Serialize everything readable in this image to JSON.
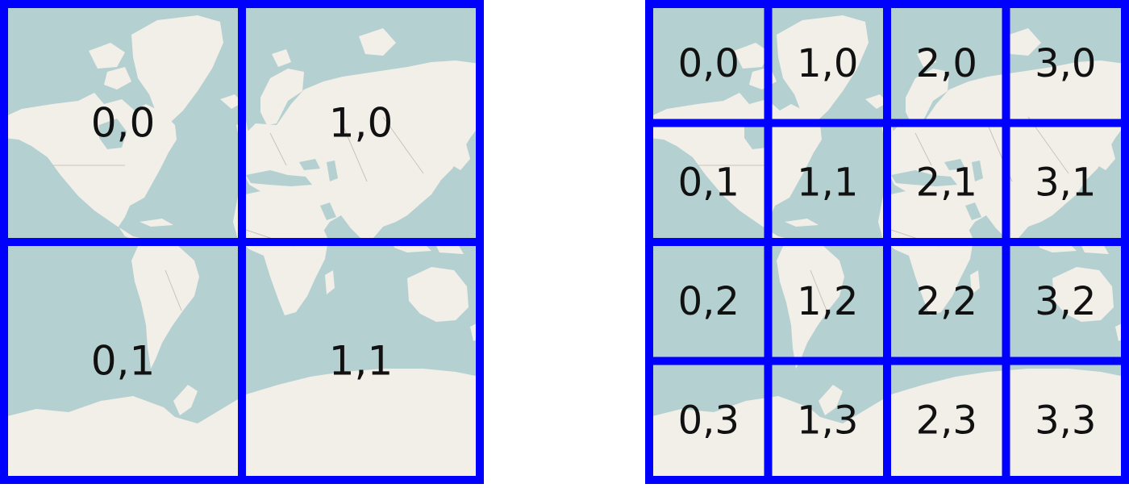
{
  "colors": {
    "ocean": "#b5d0d0",
    "land": "#f2efe9",
    "border_lines": "#c9c3bb",
    "grid": "#0000ff",
    "label": "#111111",
    "background": "#ffffff"
  },
  "zoom1": {
    "tiles": [
      {
        "id": "z1-0-0",
        "label": "0,0"
      },
      {
        "id": "z1-1-0",
        "label": "1,0"
      },
      {
        "id": "z1-0-1",
        "label": "0,1"
      },
      {
        "id": "z1-1-1",
        "label": "1,1"
      }
    ]
  },
  "zoom2": {
    "tiles": [
      {
        "id": "z2-0-0",
        "label": "0,0"
      },
      {
        "id": "z2-1-0",
        "label": "1,0"
      },
      {
        "id": "z2-2-0",
        "label": "2,0"
      },
      {
        "id": "z2-3-0",
        "label": "3,0"
      },
      {
        "id": "z2-0-1",
        "label": "0,1"
      },
      {
        "id": "z2-1-1",
        "label": "1,1"
      },
      {
        "id": "z2-2-1",
        "label": "2,1"
      },
      {
        "id": "z2-3-1",
        "label": "3,1"
      },
      {
        "id": "z2-0-2",
        "label": "0,2"
      },
      {
        "id": "z2-1-2",
        "label": "1,2"
      },
      {
        "id": "z2-2-2",
        "label": "2,2"
      },
      {
        "id": "z2-3-2",
        "label": "3,2"
      },
      {
        "id": "z2-0-3",
        "label": "0,3"
      },
      {
        "id": "z2-1-3",
        "label": "1,3"
      },
      {
        "id": "z2-2-3",
        "label": "2,3"
      },
      {
        "id": "z2-3-3",
        "label": "3,3"
      }
    ]
  }
}
